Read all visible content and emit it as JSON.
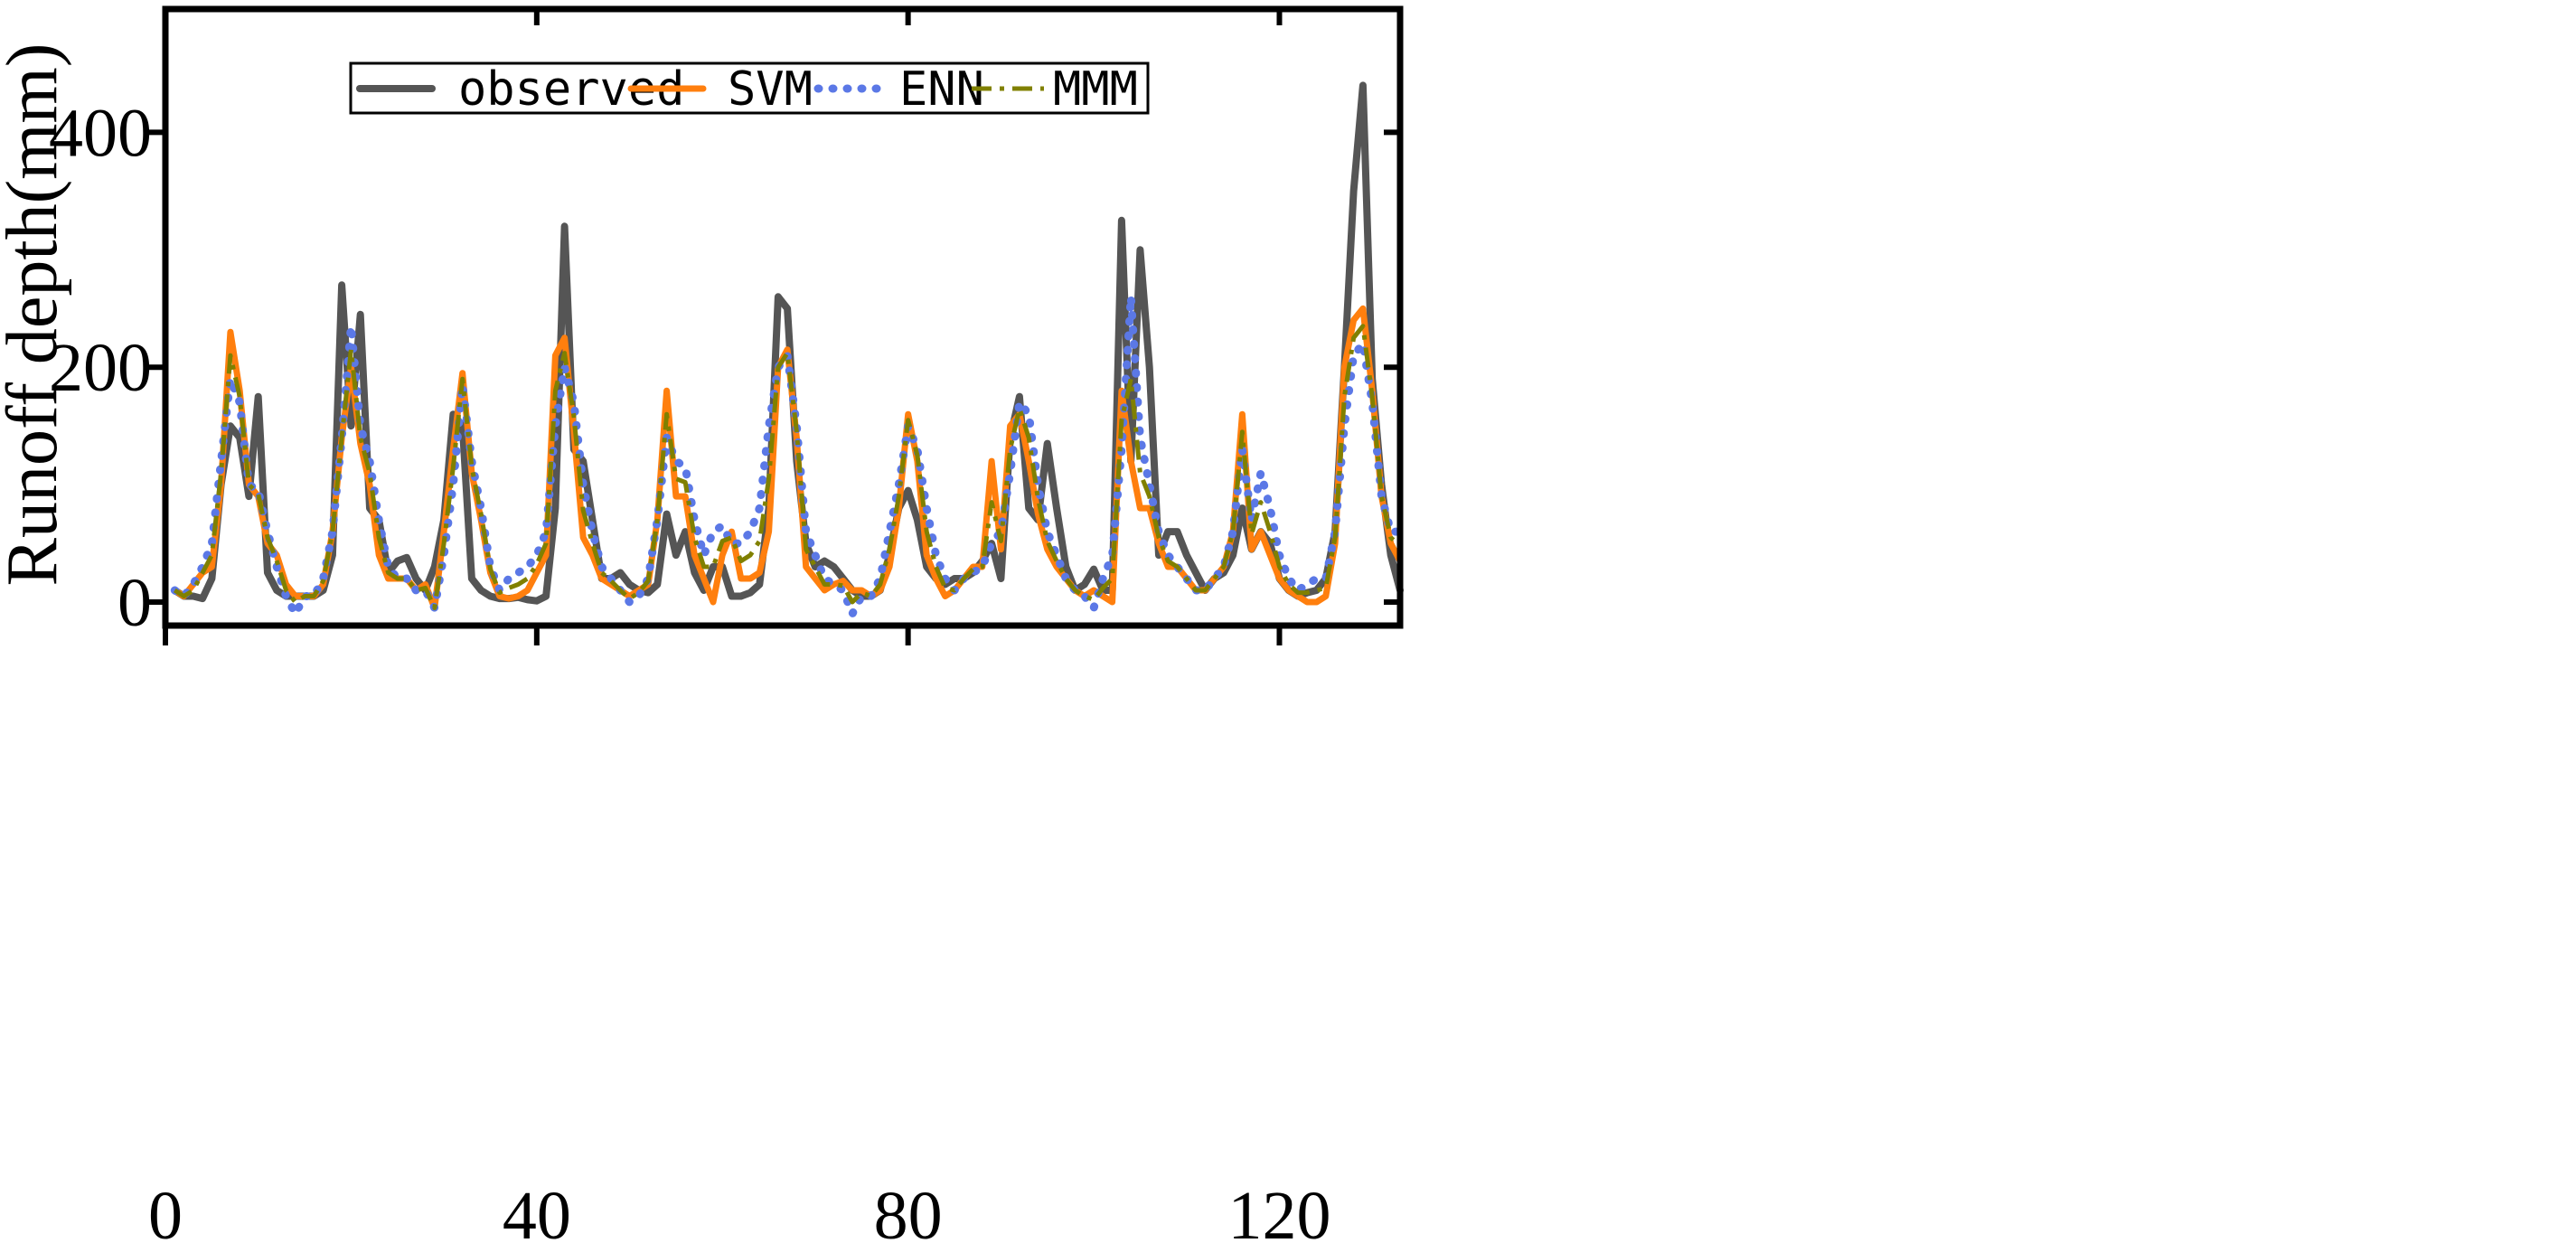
{
  "chart_data": {
    "type": "line",
    "title": "",
    "xlabel": "",
    "ylabel": "Runoff depth(mm)",
    "xlim": [
      0,
      133
    ],
    "ylim": [
      -20,
      505
    ],
    "xticks": [
      0,
      40,
      80,
      120
    ],
    "yticks": [
      0,
      200,
      400
    ],
    "xtick_labels": [
      "0",
      "40",
      "80",
      "120"
    ],
    "ytick_labels": [
      "0",
      "200",
      "400"
    ],
    "legend_position": "top-center",
    "x": [
      1,
      2,
      3,
      4,
      5,
      6,
      7,
      8,
      9,
      10,
      11,
      12,
      13,
      14,
      15,
      16,
      17,
      18,
      19,
      20,
      21,
      22,
      23,
      24,
      25,
      26,
      27,
      28,
      29,
      30,
      31,
      32,
      33,
      34,
      35,
      36,
      37,
      38,
      39,
      40,
      41,
      42,
      43,
      44,
      45,
      46,
      47,
      48,
      49,
      50,
      51,
      52,
      53,
      54,
      55,
      56,
      57,
      58,
      59,
      60,
      61,
      62,
      63,
      64,
      65,
      66,
      67,
      68,
      69,
      70,
      71,
      72,
      73,
      74,
      75,
      76,
      77,
      78,
      79,
      80,
      81,
      82,
      83,
      84,
      85,
      86,
      87,
      88,
      89,
      90,
      91,
      92,
      93,
      94,
      95,
      96,
      97,
      98,
      99,
      100,
      101,
      102,
      103,
      104,
      105,
      106,
      107,
      108,
      109,
      110,
      111,
      112,
      113,
      114,
      115,
      116,
      117,
      118,
      119,
      120,
      121,
      122,
      123,
      124,
      125,
      126,
      127,
      128,
      129,
      130,
      131,
      132,
      133
    ],
    "series": [
      {
        "name": "observed",
        "color": "#555555",
        "style": "solid",
        "values": [
          10,
          5,
          5,
          3,
          20,
          100,
          150,
          140,
          90,
          175,
          25,
          10,
          5,
          5,
          5,
          5,
          10,
          40,
          270,
          150,
          245,
          80,
          70,
          25,
          35,
          38,
          20,
          10,
          30,
          70,
          160,
          150,
          20,
          10,
          5,
          3,
          3,
          4,
          2,
          1,
          5,
          80,
          320,
          130,
          120,
          70,
          20,
          20,
          25,
          15,
          10,
          8,
          15,
          75,
          40,
          60,
          25,
          10,
          30,
          30,
          5,
          5,
          8,
          15,
          80,
          260,
          250,
          120,
          50,
          30,
          35,
          30,
          20,
          10,
          5,
          5,
          10,
          40,
          80,
          95,
          70,
          30,
          20,
          15,
          20,
          20,
          25,
          35,
          50,
          20,
          140,
          175,
          80,
          70,
          135,
          80,
          30,
          10,
          15,
          28,
          10,
          10,
          325,
          120,
          300,
          200,
          40,
          60,
          60,
          40,
          25,
          10,
          20,
          25,
          40,
          80,
          45,
          60,
          50,
          20,
          10,
          5,
          8,
          10,
          20,
          60,
          200,
          350,
          440,
          190,
          100,
          40,
          10
        ]
      },
      {
        "name": "SVM",
        "color": "#ff7f0e",
        "style": "solid",
        "values": [
          10,
          5,
          15,
          25,
          30,
          100,
          230,
          180,
          100,
          90,
          50,
          40,
          15,
          5,
          5,
          5,
          15,
          60,
          140,
          200,
          135,
          100,
          40,
          20,
          20,
          20,
          10,
          15,
          -5,
          60,
          130,
          195,
          110,
          70,
          25,
          5,
          3,
          5,
          10,
          25,
          40,
          210,
          225,
          145,
          55,
          40,
          20,
          15,
          10,
          5,
          10,
          15,
          70,
          180,
          90,
          90,
          40,
          20,
          0,
          40,
          60,
          20,
          20,
          25,
          60,
          200,
          215,
          140,
          30,
          20,
          10,
          15,
          18,
          10,
          10,
          5,
          10,
          30,
          80,
          160,
          120,
          40,
          20,
          5,
          10,
          20,
          30,
          30,
          120,
          45,
          150,
          160,
          120,
          75,
          45,
          30,
          20,
          10,
          5,
          10,
          5,
          0,
          180,
          120,
          80,
          80,
          50,
          30,
          30,
          20,
          10,
          10,
          20,
          30,
          60,
          160,
          45,
          60,
          40,
          20,
          10,
          5,
          0,
          0,
          5,
          50,
          200,
          240,
          250,
          180,
          90,
          50,
          35
        ]
      },
      {
        "name": "ENN",
        "color": "#5b78e6",
        "style": "dotted",
        "values": [
          10,
          5,
          15,
          30,
          50,
          120,
          190,
          170,
          100,
          95,
          60,
          30,
          5,
          -10,
          5,
          5,
          20,
          60,
          140,
          235,
          150,
          120,
          70,
          30,
          20,
          20,
          10,
          10,
          -5,
          40,
          100,
          185,
          120,
          80,
          30,
          10,
          20,
          25,
          30,
          40,
          60,
          150,
          200,
          170,
          100,
          60,
          30,
          20,
          10,
          0,
          5,
          20,
          70,
          140,
          120,
          115,
          70,
          40,
          60,
          65,
          50,
          50,
          60,
          80,
          150,
          200,
          210,
          150,
          60,
          40,
          20,
          15,
          10,
          -10,
          5,
          5,
          20,
          60,
          100,
          150,
          130,
          80,
          40,
          20,
          10,
          20,
          25,
          30,
          50,
          60,
          110,
          170,
          160,
          100,
          60,
          40,
          20,
          10,
          5,
          -5,
          20,
          40,
          130,
          260,
          140,
          100,
          60,
          40,
          30,
          20,
          10,
          10,
          20,
          30,
          60,
          130,
          70,
          110,
          80,
          40,
          20,
          10,
          15,
          20,
          20,
          60,
          150,
          210,
          220,
          170,
          90,
          60,
          60
        ]
      },
      {
        "name": "MMM",
        "color": "#808000",
        "style": "dashdot",
        "values": [
          10,
          5,
          10,
          25,
          40,
          110,
          210,
          175,
          100,
          92,
          55,
          35,
          10,
          0,
          5,
          5,
          18,
          60,
          140,
          215,
          140,
          110,
          55,
          25,
          20,
          20,
          10,
          12,
          -5,
          50,
          115,
          190,
          115,
          75,
          28,
          8,
          12,
          15,
          20,
          32,
          50,
          180,
          212,
          158,
          78,
          50,
          25,
          18,
          10,
          3,
          8,
          18,
          70,
          160,
          105,
          102,
          55,
          30,
          30,
          52,
          55,
          35,
          40,
          52,
          105,
          200,
          212,
          145,
          45,
          30,
          15,
          15,
          14,
          0,
          8,
          5,
          15,
          45,
          90,
          155,
          125,
          60,
          30,
          12,
          10,
          20,
          28,
          30,
          85,
          52,
          130,
          165,
          140,
          88,
          52,
          35,
          20,
          10,
          5,
          2,
          12,
          20,
          155,
          190,
          110,
          90,
          55,
          35,
          30,
          20,
          10,
          10,
          20,
          30,
          60,
          145,
          58,
          85,
          60,
          30,
          15,
          8,
          8,
          10,
          12,
          55,
          175,
          225,
          235,
          175,
          90,
          55,
          48
        ]
      }
    ]
  }
}
